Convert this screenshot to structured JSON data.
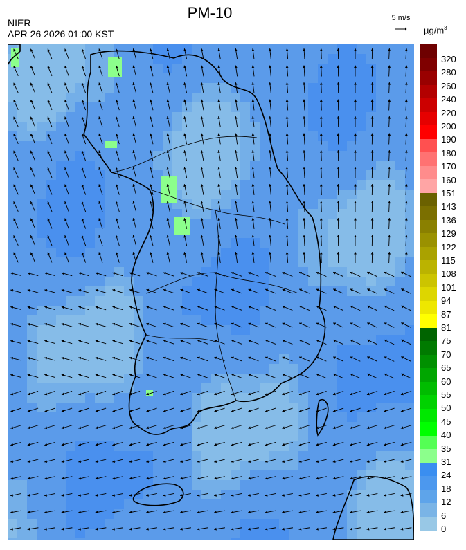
{
  "header": {
    "title": "PM-10",
    "agency": "NIER",
    "timestamp": "APR 26 2026 01:00 KST"
  },
  "wind_reference": {
    "label": "5 m/s",
    "icon": "arrow-right-icon"
  },
  "legend": {
    "unit": "µg/m",
    "unit_sup": "3",
    "labels": [
      "320",
      "280",
      "260",
      "240",
      "220",
      "200",
      "190",
      "180",
      "170",
      "160",
      "151",
      "143",
      "136",
      "129",
      "122",
      "115",
      "108",
      "101",
      "94",
      "87",
      "81",
      "75",
      "70",
      "65",
      "60",
      "55",
      "50",
      "45",
      "40",
      "35",
      "31",
      "24",
      "18",
      "12",
      "6",
      "0"
    ],
    "colors": [
      "#6e0000",
      "#7f0000",
      "#990000",
      "#b30000",
      "#cc0000",
      "#e60000",
      "#ff0000",
      "#ff5050",
      "#ff7272",
      "#ff8c8c",
      "#ffa5a5",
      "#6b6100",
      "#7b6f00",
      "#8a8000",
      "#9a9100",
      "#aaa200",
      "#bbb300",
      "#ccc400",
      "#ddd600",
      "#eee700",
      "#ffff00",
      "#006400",
      "#007a00",
      "#009000",
      "#00a600",
      "#00bc00",
      "#00d200",
      "#00e800",
      "#00ff00",
      "#54ff54",
      "#8cff8c",
      "#3a8ef0",
      "#4c98ee",
      "#5ea4ea",
      "#7ab4e6",
      "#98c8e6"
    ]
  }
}
